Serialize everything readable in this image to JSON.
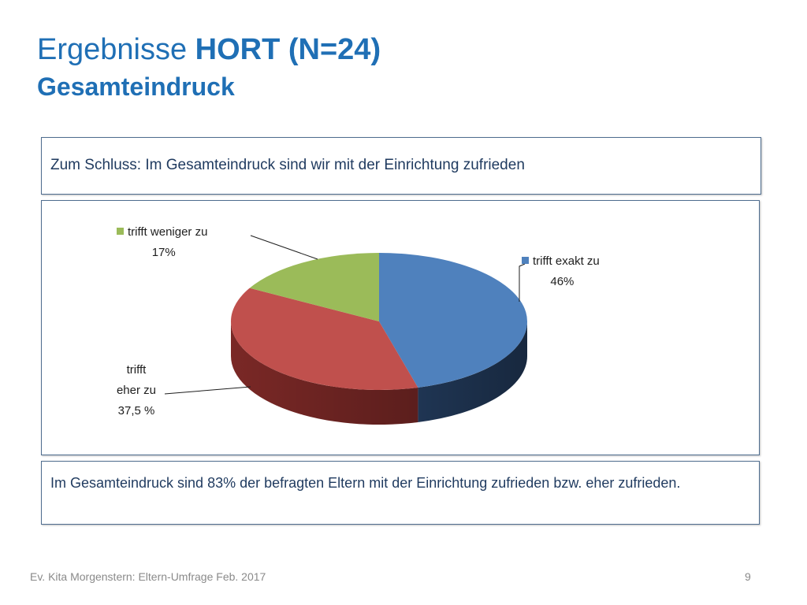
{
  "slide": {
    "title_prefix": "Ergebnisse ",
    "title_bold": "HORT (N=24)",
    "subtitle": "Gesamteindruck",
    "question": "Zum Schluss: Im Gesamteindruck sind wir mit der Einrichtung zufrieden",
    "summary": "Im Gesamteindruck sind 83% der befragten Eltern mit der Einrichtung zufrieden bzw. eher zufrieden.",
    "footer": "Ev. Kita Morgenstern: Eltern-Umfrage Feb. 2017",
    "page_number": "9"
  },
  "chart_data": {
    "type": "pie",
    "style": "3d",
    "legend": "inline labels",
    "slices": [
      {
        "name": "trifft exakt zu",
        "value": 46,
        "value_label": "46%",
        "color": "#4f81bd",
        "side_color": "#1f3553"
      },
      {
        "name": "trifft eher zu",
        "value": 37.5,
        "value_label": "37,5 %",
        "color": "#c0504d",
        "side_color": "#7a2826"
      },
      {
        "name": "trifft weniger zu",
        "value": 17,
        "value_label": "17%",
        "color": "#9bbb59",
        "side_color": "#5d7432"
      }
    ]
  }
}
